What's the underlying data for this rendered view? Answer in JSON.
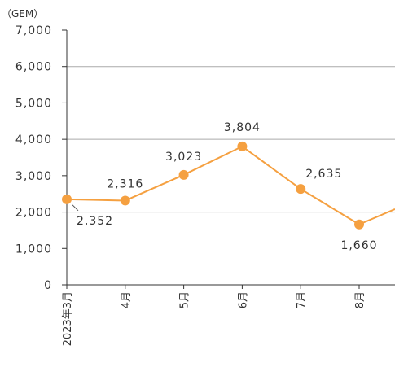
{
  "chart_data": {
    "type": "line",
    "unit": "（GEM）",
    "categories": [
      "2023年3月",
      "4月",
      "5月",
      "6月",
      "7月",
      "8月"
    ],
    "values": [
      2352,
      2316,
      3023,
      3804,
      2635,
      1660
    ],
    "data_labels": [
      "2,352",
      "2,316",
      "3,023",
      "3,804",
      "2,635",
      "1,660"
    ],
    "y_ticks": [
      0,
      1000,
      2000,
      3000,
      4000,
      5000,
      6000,
      7000
    ],
    "y_tick_labels": [
      "0",
      "1,000",
      "2,000",
      "3,000",
      "4,000",
      "5,000",
      "6,000",
      "7,000"
    ],
    "ylim": [
      0,
      7000
    ],
    "grid": true,
    "line_color": "#f5a040",
    "marker_color": "#f5a040"
  }
}
